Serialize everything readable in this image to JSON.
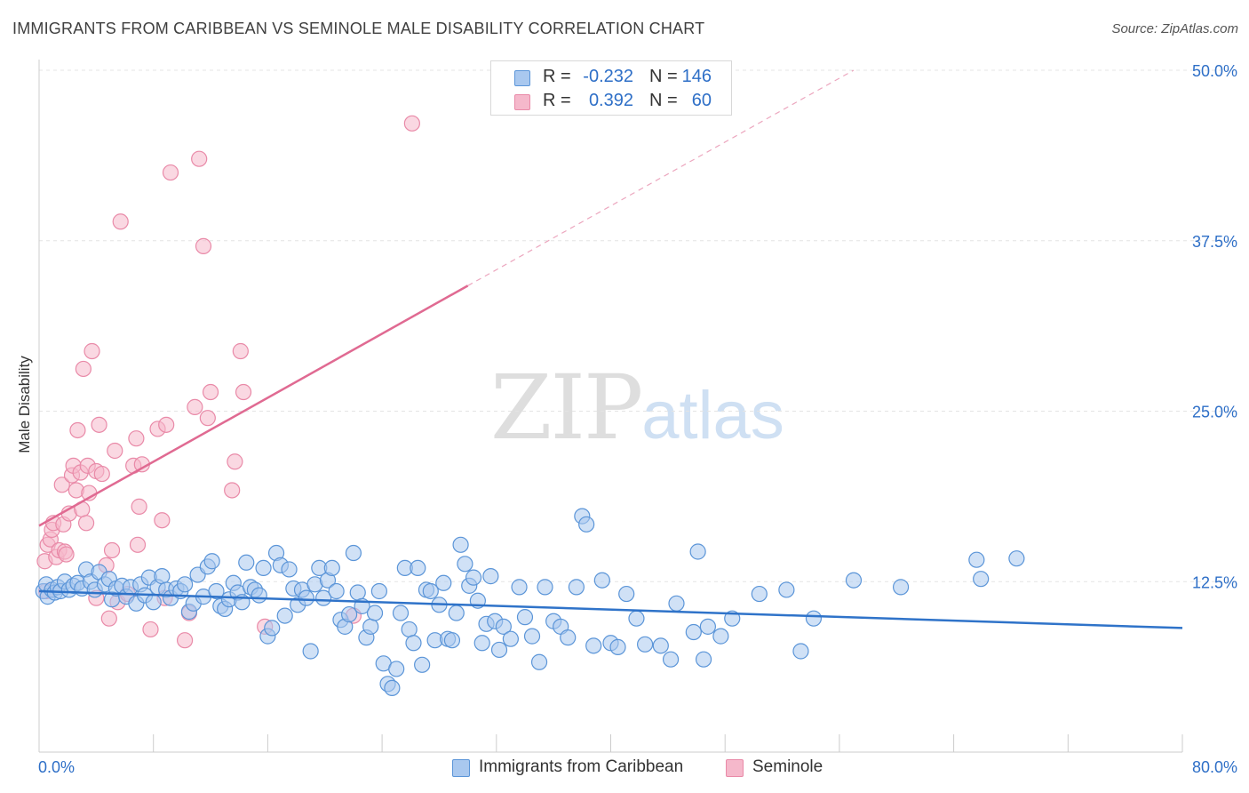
{
  "title": "IMMIGRANTS FROM CARIBBEAN VS SEMINOLE MALE DISABILITY CORRELATION CHART",
  "source": "Source: ZipAtlas.com",
  "watermark": {
    "zip": "ZIP",
    "atlas": "atlas"
  },
  "legend_top": {
    "rows": [
      {
        "r_label": "R =",
        "r_value": "-0.232",
        "n_label": "N =",
        "n_value": "146"
      },
      {
        "r_label": "R =",
        "r_value": "0.392",
        "n_label": "N =",
        "n_value": "60"
      }
    ]
  },
  "legend_bottom": {
    "items": [
      {
        "label": "Immigrants from Caribbean"
      },
      {
        "label": "Seminole"
      }
    ]
  },
  "colors": {
    "blue_fill": "#a9c8ef",
    "blue_stroke": "#5b95d8",
    "blue_line": "#2f73c9",
    "pink_fill": "#f5b8cb",
    "pink_stroke": "#e98aa8",
    "pink_line": "#e06a92",
    "grid": "#e4e4e4",
    "tick_label": "#2e6fc7"
  },
  "chart_data": {
    "type": "scatter",
    "title": "IMMIGRANTS FROM CARIBBEAN VS SEMINOLE MALE DISABILITY CORRELATION CHART",
    "xlabel": "",
    "ylabel": "Male Disability",
    "xlim": [
      0,
      80
    ],
    "ylim": [
      0,
      50
    ],
    "x_tick_labels": [
      "0.0%",
      "80.0%"
    ],
    "y_ticks": [
      12.5,
      25.0,
      37.5,
      50.0
    ],
    "y_tick_labels": [
      "12.5%",
      "25.0%",
      "37.5%",
      "50.0%"
    ],
    "grid": true,
    "legend_position": "top-center",
    "series": [
      {
        "name": "Immigrants from Caribbean",
        "r": -0.232,
        "n": 146,
        "trend": {
          "x": [
            0,
            80
          ],
          "y": [
            11.8,
            9.1
          ],
          "dashed_from": null
        },
        "points": [
          [
            0.3,
            11.8
          ],
          [
            0.5,
            12.3
          ],
          [
            0.6,
            11.4
          ],
          [
            0.9,
            11.9
          ],
          [
            1.1,
            11.7
          ],
          [
            1.3,
            12.1
          ],
          [
            1.5,
            11.8
          ],
          [
            1.8,
            12.5
          ],
          [
            2.1,
            11.9
          ],
          [
            2.4,
            12.2
          ],
          [
            2.7,
            12.4
          ],
          [
            3.0,
            12.0
          ],
          [
            3.3,
            13.4
          ],
          [
            3.6,
            12.5
          ],
          [
            3.9,
            11.9
          ],
          [
            4.2,
            13.2
          ],
          [
            4.6,
            12.3
          ],
          [
            4.9,
            12.7
          ],
          [
            5.1,
            11.2
          ],
          [
            5.4,
            12.0
          ],
          [
            5.8,
            12.2
          ],
          [
            6.1,
            11.4
          ],
          [
            6.4,
            12.1
          ],
          [
            6.8,
            10.9
          ],
          [
            7.1,
            12.3
          ],
          [
            7.4,
            11.5
          ],
          [
            7.7,
            12.8
          ],
          [
            8.0,
            11.0
          ],
          [
            8.3,
            12.1
          ],
          [
            8.6,
            12.9
          ],
          [
            8.9,
            11.9
          ],
          [
            9.2,
            11.3
          ],
          [
            9.6,
            12.0
          ],
          [
            9.9,
            11.8
          ],
          [
            10.2,
            12.3
          ],
          [
            10.5,
            10.3
          ],
          [
            10.8,
            10.9
          ],
          [
            11.1,
            13.0
          ],
          [
            11.5,
            11.4
          ],
          [
            11.8,
            13.6
          ],
          [
            12.1,
            14.0
          ],
          [
            12.4,
            11.8
          ],
          [
            12.7,
            10.7
          ],
          [
            13.0,
            10.5
          ],
          [
            13.3,
            11.2
          ],
          [
            13.6,
            12.4
          ],
          [
            13.9,
            11.7
          ],
          [
            14.2,
            11.0
          ],
          [
            14.5,
            13.9
          ],
          [
            14.8,
            12.1
          ],
          [
            15.1,
            11.9
          ],
          [
            15.4,
            11.5
          ],
          [
            15.7,
            13.5
          ],
          [
            16.0,
            8.5
          ],
          [
            16.3,
            9.1
          ],
          [
            16.6,
            14.6
          ],
          [
            16.9,
            13.7
          ],
          [
            17.2,
            10.0
          ],
          [
            17.5,
            13.4
          ],
          [
            17.8,
            12.0
          ],
          [
            18.1,
            10.8
          ],
          [
            18.4,
            11.9
          ],
          [
            18.7,
            11.3
          ],
          [
            19.0,
            7.4
          ],
          [
            19.3,
            12.3
          ],
          [
            19.6,
            13.5
          ],
          [
            19.9,
            11.3
          ],
          [
            20.2,
            12.6
          ],
          [
            20.5,
            13.5
          ],
          [
            20.8,
            11.8
          ],
          [
            21.1,
            9.7
          ],
          [
            21.4,
            9.2
          ],
          [
            21.7,
            10.1
          ],
          [
            22.0,
            14.6
          ],
          [
            22.3,
            11.7
          ],
          [
            22.6,
            10.7
          ],
          [
            22.9,
            8.4
          ],
          [
            23.2,
            9.2
          ],
          [
            23.5,
            10.2
          ],
          [
            23.8,
            11.8
          ],
          [
            24.1,
            6.5
          ],
          [
            24.4,
            5.0
          ],
          [
            24.7,
            4.7
          ],
          [
            25.0,
            6.1
          ],
          [
            25.3,
            10.2
          ],
          [
            25.6,
            13.5
          ],
          [
            25.9,
            9.0
          ],
          [
            26.2,
            8.0
          ],
          [
            26.5,
            13.5
          ],
          [
            26.8,
            6.4
          ],
          [
            27.1,
            11.9
          ],
          [
            27.4,
            11.8
          ],
          [
            27.7,
            8.2
          ],
          [
            28.0,
            10.8
          ],
          [
            28.3,
            12.4
          ],
          [
            28.6,
            8.3
          ],
          [
            28.9,
            8.2
          ],
          [
            29.2,
            10.2
          ],
          [
            29.5,
            15.2
          ],
          [
            29.8,
            13.8
          ],
          [
            30.1,
            12.2
          ],
          [
            30.4,
            12.8
          ],
          [
            30.7,
            11.1
          ],
          [
            31.0,
            8.0
          ],
          [
            31.3,
            9.4
          ],
          [
            31.6,
            12.9
          ],
          [
            31.9,
            9.6
          ],
          [
            32.2,
            7.5
          ],
          [
            32.5,
            9.2
          ],
          [
            33.0,
            8.3
          ],
          [
            33.6,
            12.1
          ],
          [
            34.0,
            9.9
          ],
          [
            34.5,
            8.5
          ],
          [
            35.0,
            6.6
          ],
          [
            35.4,
            12.1
          ],
          [
            36.0,
            9.6
          ],
          [
            36.5,
            9.2
          ],
          [
            37.0,
            8.4
          ],
          [
            37.6,
            12.1
          ],
          [
            38.0,
            17.3
          ],
          [
            38.3,
            16.7
          ],
          [
            38.8,
            7.8
          ],
          [
            39.4,
            12.6
          ],
          [
            40.0,
            8.0
          ],
          [
            40.5,
            7.7
          ],
          [
            41.1,
            11.6
          ],
          [
            41.8,
            9.8
          ],
          [
            42.4,
            7.9
          ],
          [
            43.5,
            7.8
          ],
          [
            44.2,
            6.8
          ],
          [
            44.6,
            10.9
          ],
          [
            45.8,
            8.8
          ],
          [
            46.1,
            14.7
          ],
          [
            46.5,
            6.8
          ],
          [
            46.8,
            9.2
          ],
          [
            47.7,
            8.5
          ],
          [
            48.5,
            9.8
          ],
          [
            50.4,
            11.6
          ],
          [
            52.3,
            11.9
          ],
          [
            53.3,
            7.4
          ],
          [
            54.2,
            9.8
          ],
          [
            57.0,
            12.6
          ],
          [
            60.3,
            12.1
          ],
          [
            65.6,
            14.1
          ],
          [
            65.9,
            12.7
          ],
          [
            68.4,
            14.2
          ]
        ]
      },
      {
        "name": "Seminole",
        "r": 0.392,
        "n": 60,
        "trend": {
          "x": [
            0,
            30
          ],
          "y": [
            16.6,
            34.2
          ],
          "dashed_to": [
            57,
            50
          ]
        },
        "points": [
          [
            0.4,
            14.0
          ],
          [
            0.5,
            11.8
          ],
          [
            0.6,
            15.2
          ],
          [
            0.8,
            15.6
          ],
          [
            0.9,
            16.3
          ],
          [
            1.0,
            16.8
          ],
          [
            1.2,
            14.3
          ],
          [
            1.4,
            14.8
          ],
          [
            1.6,
            19.6
          ],
          [
            1.7,
            16.7
          ],
          [
            1.8,
            14.7
          ],
          [
            1.9,
            14.5
          ],
          [
            2.1,
            17.5
          ],
          [
            2.3,
            20.3
          ],
          [
            2.4,
            21.0
          ],
          [
            2.6,
            19.2
          ],
          [
            2.7,
            23.6
          ],
          [
            2.9,
            20.5
          ],
          [
            3.0,
            17.8
          ],
          [
            3.1,
            28.1
          ],
          [
            3.3,
            16.8
          ],
          [
            3.4,
            21.0
          ],
          [
            3.5,
            19.0
          ],
          [
            3.7,
            29.4
          ],
          [
            4.0,
            20.6
          ],
          [
            4.2,
            24.0
          ],
          [
            4.4,
            20.4
          ],
          [
            4.7,
            13.7
          ],
          [
            4.9,
            9.8
          ],
          [
            5.1,
            14.8
          ],
          [
            5.3,
            22.1
          ],
          [
            5.5,
            11.0
          ],
          [
            5.7,
            38.9
          ],
          [
            6.2,
            11.6
          ],
          [
            6.6,
            21.0
          ],
          [
            6.8,
            23.0
          ],
          [
            7.0,
            18.0
          ],
          [
            7.2,
            21.1
          ],
          [
            7.8,
            9.0
          ],
          [
            8.3,
            23.7
          ],
          [
            8.6,
            17.0
          ],
          [
            8.8,
            11.3
          ],
          [
            8.9,
            24.0
          ],
          [
            9.2,
            42.5
          ],
          [
            10.2,
            8.2
          ],
          [
            10.5,
            10.2
          ],
          [
            10.9,
            25.3
          ],
          [
            11.2,
            43.5
          ],
          [
            11.5,
            37.1
          ],
          [
            11.8,
            24.5
          ],
          [
            12.0,
            26.4
          ],
          [
            13.5,
            19.2
          ],
          [
            13.7,
            21.3
          ],
          [
            14.1,
            29.4
          ],
          [
            14.3,
            26.4
          ],
          [
            15.8,
            9.2
          ],
          [
            22.0,
            10.0
          ],
          [
            26.1,
            46.1
          ],
          [
            4.0,
            11.3
          ],
          [
            6.9,
            15.2
          ]
        ]
      }
    ]
  }
}
